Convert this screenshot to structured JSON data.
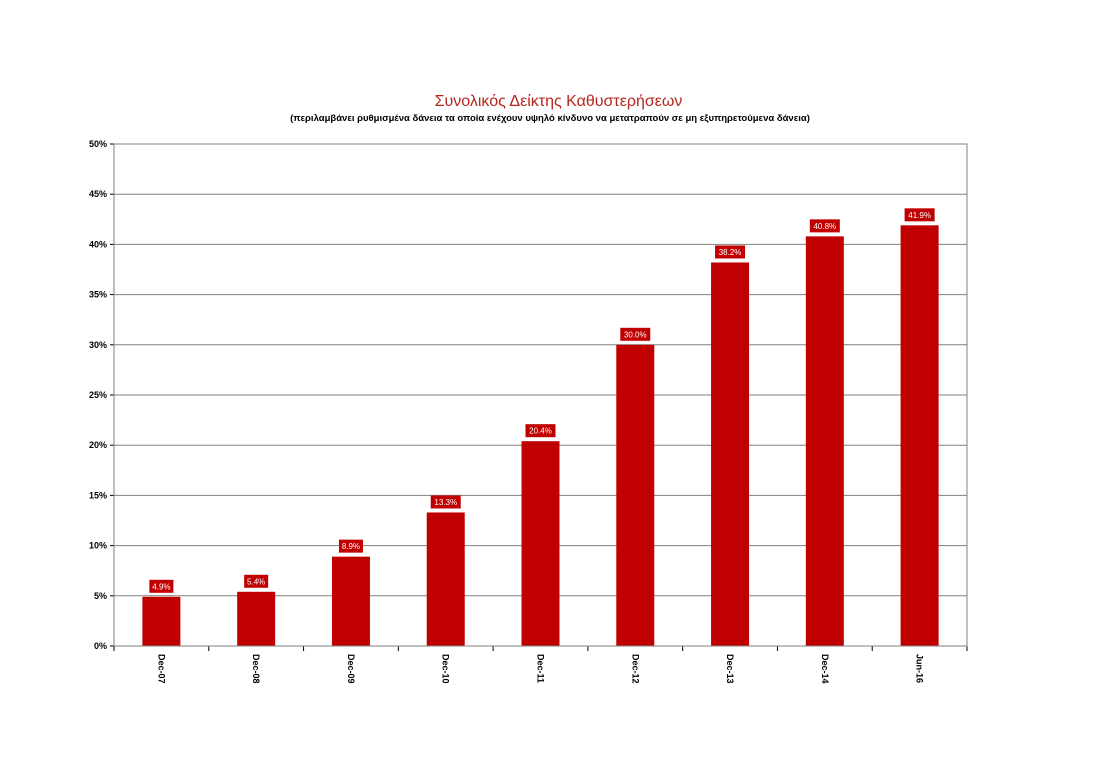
{
  "chart_data": {
    "type": "bar",
    "title": "Συνολικός Δείκτης Καθυστερήσεων",
    "subtitle": "(περιλαμβάνει ρυθμισμένα δάνεια  τα οποία ενέχουν υψηλό κίνδυνο να μετατραπούν σε μη εξυπηρετούμενα δάνεια)",
    "categories": [
      "Dec-07",
      "Dec-08",
      "Dec-09",
      "Dec-10",
      "Dec-11",
      "Dec-12",
      "Dec-13",
      "Dec-14",
      "Jun-16"
    ],
    "values": [
      4.9,
      5.4,
      8.9,
      13.3,
      20.4,
      30.0,
      38.2,
      40.8,
      41.9
    ],
    "data_labels": [
      "4.9%",
      "5.4%",
      "8.9%",
      "13.3%",
      "20.4%",
      "30.0%",
      "38.2%",
      "40.8%",
      "41.9%"
    ],
    "y_ticks": [
      0,
      5,
      10,
      15,
      20,
      25,
      30,
      35,
      40,
      45,
      50
    ],
    "y_tick_labels": [
      "0%",
      "5%",
      "10%",
      "15%",
      "20%",
      "25%",
      "30%",
      "35%",
      "40%",
      "45%",
      "50%"
    ],
    "ylim": [
      0,
      50
    ],
    "xlabel": "",
    "ylabel": "",
    "grid": true,
    "legend": "none",
    "colors": {
      "bar": "#c00000",
      "title": "#b5261e",
      "grid": "#808080"
    }
  }
}
